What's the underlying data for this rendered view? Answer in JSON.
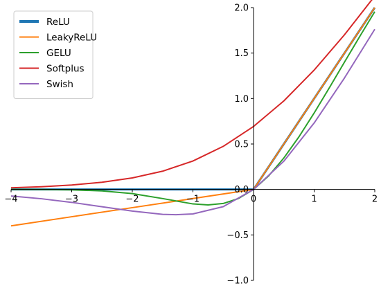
{
  "chart_data": {
    "type": "line",
    "title": "",
    "xlabel": "",
    "ylabel": "",
    "xlim": [
      -4,
      2
    ],
    "ylim": [
      -1.0,
      2.0
    ],
    "xticks": [
      -4,
      -3,
      -2,
      -1,
      0,
      1,
      2
    ],
    "xtick_labels": [
      "−4",
      "−3",
      "−2",
      "−1",
      "0",
      "1",
      "2"
    ],
    "yticks": [
      -1.0,
      -0.5,
      0.0,
      0.5,
      1.0,
      1.5,
      2.0
    ],
    "ytick_labels": [
      "−1.0",
      "−0.5",
      "0.0",
      "0.5",
      "1.0",
      "1.5",
      "2.0"
    ],
    "spines": "centered at origin",
    "grid": false,
    "legend_position": "top-left",
    "series": [
      {
        "name": "ReLU",
        "color": "#1f77b4",
        "x": [
          -4,
          -3,
          -2,
          -1,
          0,
          0.5,
          1,
          1.5,
          2
        ],
        "y": [
          0,
          0,
          0,
          0,
          0,
          0.5,
          1,
          1.5,
          2
        ]
      },
      {
        "name": "LeakyReLU",
        "color": "#ff7f0e",
        "x": [
          -4,
          -3,
          -2,
          -1,
          0,
          0.5,
          1,
          1.5,
          2
        ],
        "y": [
          -0.4,
          -0.3,
          -0.2,
          -0.1,
          0,
          0.5,
          1,
          1.5,
          2
        ]
      },
      {
        "name": "GELU",
        "color": "#2ca02c",
        "x": [
          -4,
          -3.5,
          -3,
          -2.5,
          -2,
          -1.5,
          -1,
          -0.75,
          -0.5,
          -0.25,
          0,
          0.25,
          0.5,
          0.75,
          1,
          1.25,
          1.5,
          1.75,
          2
        ],
        "y": [
          0,
          -0.001,
          -0.004,
          -0.016,
          -0.045,
          -0.1,
          -0.159,
          -0.17,
          -0.154,
          -0.1,
          0,
          0.15,
          0.346,
          0.58,
          0.841,
          1.118,
          1.4,
          1.68,
          1.955
        ]
      },
      {
        "name": "Softplus",
        "color": "#d62728",
        "x": [
          -4,
          -3.5,
          -3,
          -2.5,
          -2,
          -1.5,
          -1,
          -0.5,
          0,
          0.5,
          1,
          1.5,
          2
        ],
        "y": [
          0.018,
          0.03,
          0.049,
          0.079,
          0.127,
          0.201,
          0.313,
          0.474,
          0.693,
          0.974,
          1.313,
          1.701,
          2.127
        ]
      },
      {
        "name": "Swish",
        "color": "#9467bd",
        "x": [
          -4,
          -3.5,
          -3,
          -2.5,
          -2,
          -1.5,
          -1.28,
          -1,
          -0.5,
          0,
          0.5,
          1,
          1.5,
          2
        ],
        "y": [
          -0.072,
          -0.102,
          -0.142,
          -0.19,
          -0.238,
          -0.274,
          -0.278,
          -0.269,
          -0.189,
          0,
          0.311,
          0.731,
          1.226,
          1.762
        ]
      }
    ]
  }
}
